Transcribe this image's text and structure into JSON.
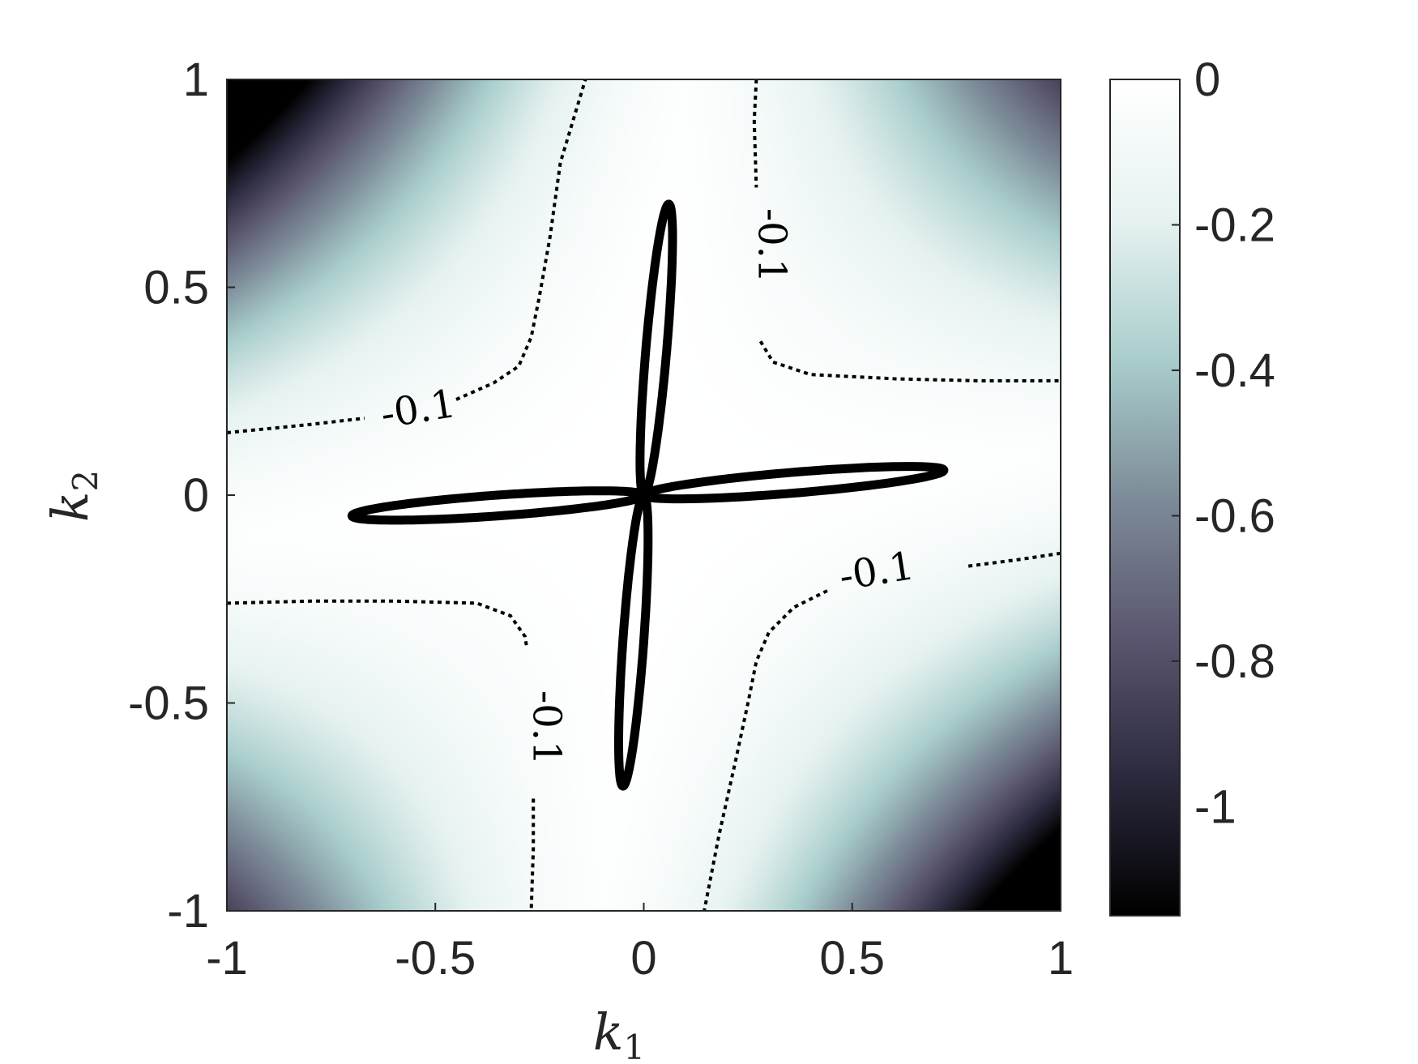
{
  "chart_data": {
    "type": "heatmap",
    "title": "",
    "xlabel": "k",
    "xlabel_sub": "1",
    "ylabel": "k",
    "ylabel_sub": "2",
    "xlim": [
      -1,
      1
    ],
    "ylim": [
      -1,
      1
    ],
    "x_ticks": [
      -1,
      -0.5,
      0,
      0.5,
      1
    ],
    "x_tick_labels": [
      "-1",
      "-0.5",
      "0",
      "0.5",
      "1"
    ],
    "y_ticks": [
      -1,
      -0.5,
      0,
      0.5,
      1
    ],
    "y_tick_labels": [
      "-1",
      "-0.5",
      "0",
      "0.5",
      "1"
    ],
    "grid": false,
    "colorbar": {
      "position": "right",
      "range": [
        -1.15,
        0
      ],
      "ticks": [
        0,
        -0.2,
        -0.4,
        -0.6,
        -0.8,
        -1
      ],
      "tick_labels": [
        "0",
        "-0.2",
        "-0.4",
        "-0.6",
        "-0.8",
        "-1"
      ],
      "colormap": [
        "#000000",
        "#2b2a3e",
        "#5a566f",
        "#7d8c99",
        "#a9cecc",
        "#e6f2f1",
        "#ffffff"
      ]
    },
    "contour_levels": [
      -0.1
    ],
    "contour_labels": [
      {
        "text": "-0.1",
        "x": -0.54,
        "y": 0.2,
        "angle": -9
      },
      {
        "text": "-0.1",
        "x": 0.3,
        "y": 0.6,
        "angle": 90
      },
      {
        "text": "-0.1",
        "x": 0.56,
        "y": -0.19,
        "angle": -9
      },
      {
        "text": "-0.1",
        "x": -0.24,
        "y": -0.56,
        "angle": 90
      }
    ],
    "contour_curves": [
      [
        [
          -1,
          0.15
        ],
        [
          -0.8,
          0.17
        ],
        [
          -0.67,
          0.185
        ]
      ],
      [
        [
          -0.45,
          0.23
        ],
        [
          -0.36,
          0.27
        ],
        [
          -0.3,
          0.31
        ],
        [
          -0.27,
          0.38
        ],
        [
          -0.25,
          0.48
        ],
        [
          -0.225,
          0.62
        ],
        [
          -0.2,
          0.8
        ],
        [
          -0.14,
          1
        ]
      ],
      [
        [
          0.27,
          1
        ],
        [
          0.265,
          0.9
        ],
        [
          0.27,
          0.74
        ]
      ],
      [
        [
          0.28,
          0.37
        ],
        [
          0.31,
          0.32
        ],
        [
          0.4,
          0.29
        ],
        [
          0.6,
          0.28
        ],
        [
          0.8,
          0.275
        ],
        [
          1,
          0.275
        ]
      ],
      [
        [
          1,
          -0.14
        ],
        [
          0.9,
          -0.155
        ],
        [
          0.77,
          -0.172
        ]
      ],
      [
        [
          0.44,
          -0.23
        ],
        [
          0.36,
          -0.27
        ],
        [
          0.3,
          -0.33
        ],
        [
          0.27,
          -0.4
        ],
        [
          0.25,
          -0.5
        ],
        [
          0.22,
          -0.64
        ],
        [
          0.18,
          -0.82
        ],
        [
          0.145,
          -1
        ]
      ],
      [
        [
          -1,
          -0.26
        ],
        [
          -0.8,
          -0.255
        ],
        [
          -0.6,
          -0.255
        ],
        [
          -0.4,
          -0.26
        ],
        [
          -0.32,
          -0.29
        ],
        [
          -0.285,
          -0.34
        ],
        [
          -0.28,
          -0.37
        ]
      ],
      [
        [
          -0.265,
          -0.73
        ],
        [
          -0.265,
          -0.85
        ],
        [
          -0.27,
          -1
        ]
      ]
    ],
    "bold_curve": {
      "description_free": true,
      "lobes": [
        {
          "tip": [
            0.06,
            0.7
          ],
          "half_width": 0.025
        },
        {
          "tip": [
            -0.05,
            -0.7
          ],
          "half_width": 0.025
        },
        {
          "tip": [
            0.72,
            0.06
          ],
          "half_width": 0.025
        },
        {
          "tip": [
            -0.7,
            -0.05
          ],
          "half_width": 0.025
        }
      ]
    }
  }
}
